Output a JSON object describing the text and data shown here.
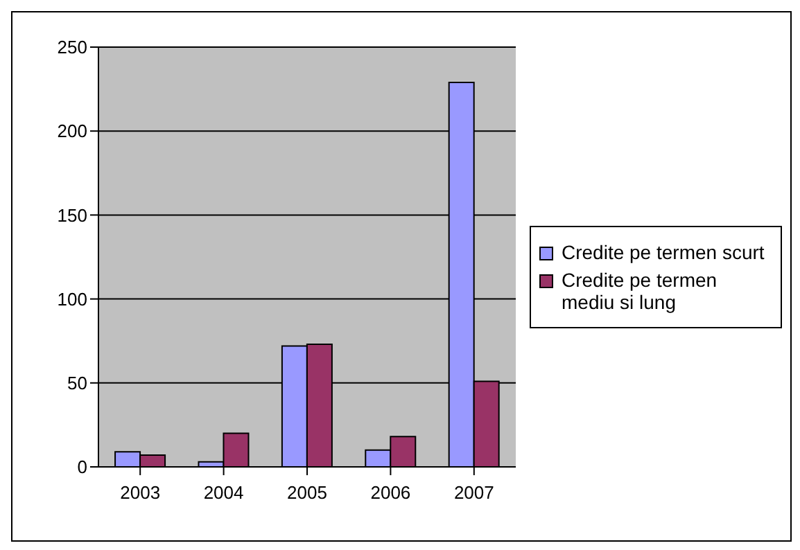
{
  "chart_data": {
    "type": "bar",
    "categories": [
      "2003",
      "2004",
      "2005",
      "2006",
      "2007"
    ],
    "series": [
      {
        "name": "Credite pe termen scurt",
        "color": "#9999ff",
        "values": [
          9,
          3,
          72,
          10,
          229
        ]
      },
      {
        "name": "Credite pe termen mediu si lung",
        "color": "#993366",
        "values": [
          7,
          20,
          73,
          18,
          51
        ]
      }
    ],
    "ylim": [
      0,
      250
    ],
    "yticks": [
      0,
      50,
      100,
      150,
      200,
      250
    ],
    "grid": "y",
    "legend": "right"
  }
}
